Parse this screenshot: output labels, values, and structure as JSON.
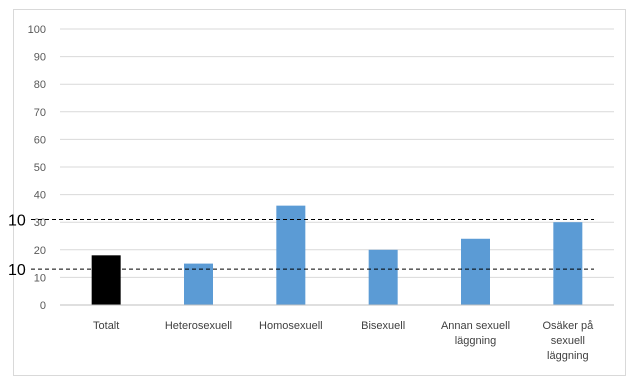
{
  "chart_data": {
    "type": "bar",
    "categories": [
      [
        "Totalt"
      ],
      [
        "Heterosexuell"
      ],
      [
        "Homosexuell"
      ],
      [
        "Bisexuell"
      ],
      [
        "Annan sexuell",
        "läggning"
      ],
      [
        "Osäker på",
        "sexuell",
        "läggning"
      ]
    ],
    "values": [
      18,
      15,
      36,
      20,
      24,
      30
    ],
    "bar_colors": [
      "#000000",
      "#5b9bd5",
      "#5b9bd5",
      "#5b9bd5",
      "#5b9bd5",
      "#5b9bd5"
    ],
    "ylim": [
      0,
      100
    ],
    "yticks": [
      "0",
      "10",
      "20",
      "30",
      "40",
      "50",
      "60",
      "70",
      "80",
      "90",
      "100"
    ],
    "grid": true,
    "reference_lines": [
      {
        "value": 31,
        "label": "10",
        "style": "dashed",
        "color": "#000000"
      },
      {
        "value": 13,
        "label": "10",
        "style": "dashed",
        "color": "#000000"
      }
    ],
    "title": "",
    "xlabel": "",
    "ylabel": ""
  }
}
